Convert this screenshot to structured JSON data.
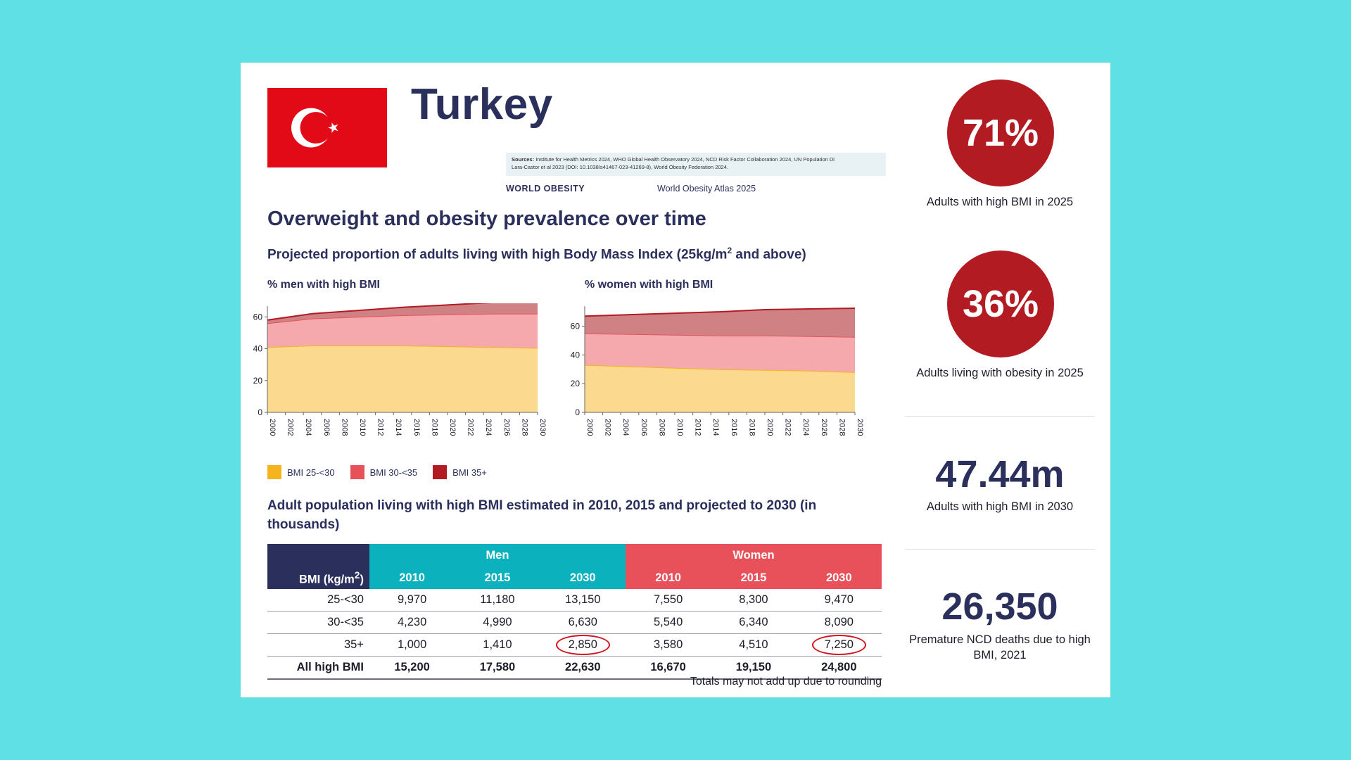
{
  "country": "Turkey",
  "sources": {
    "label": "Sources:",
    "line1": "Institute for Health Metrics 2024, WHO Global Health Observatory 2024, NCD Risk Factor Collaboration 2024, UN Population Di",
    "line2": "Lara-Castor et al 2023 (DOI: 10.1038/s41467-023-41269-8), World Obesity Federation 2024."
  },
  "brand": "WORLD OBESITY",
  "atlas": "World Obesity Atlas 2025",
  "section_title": "Overweight and obesity prevalence over time",
  "subtitle_prefix": "Projected proportion of adults living with high Body Mass Index (25kg/m",
  "subtitle_sup": "2",
  "subtitle_suffix": " and above)",
  "men_chart_label": "% men with high BMI",
  "women_chart_label": "% women with high BMI",
  "legend": [
    {
      "label": "BMI 25-<30",
      "color": "#f5b31d"
    },
    {
      "label": "BMI 30-<35",
      "color": "#e8515a"
    },
    {
      "label": "BMI 35+",
      "color": "#b31b22"
    }
  ],
  "table_title": "Adult population living with high BMI estimated in 2010, 2015 and projected to 2030 (in thousands)",
  "table": {
    "corner_prefix": "BMI (kg/m",
    "corner_sup": "2",
    "corner_suffix": ")",
    "men": "Men",
    "women": "Women",
    "years": [
      "2010",
      "2015",
      "2030",
      "2010",
      "2015",
      "2030"
    ],
    "rows": [
      {
        "label": "25-<30",
        "values": [
          "9,970",
          "11,180",
          "13,150",
          "7,550",
          "8,300",
          "9,470"
        ]
      },
      {
        "label": "30-<35",
        "values": [
          "4,230",
          "4,990",
          "6,630",
          "5,540",
          "6,340",
          "8,090"
        ]
      },
      {
        "label": "35+",
        "values": [
          "1,000",
          "1,410",
          "2,850",
          "3,580",
          "4,510",
          "7,250"
        ]
      },
      {
        "label": "All high BMI",
        "values": [
          "15,200",
          "17,580",
          "22,630",
          "16,670",
          "19,150",
          "24,800"
        ]
      }
    ],
    "note": "Totals may not add up due to rounding"
  },
  "stats": {
    "adults_high_bmi_2025": {
      "value": "71%",
      "caption": "Adults with high BMI in 2025"
    },
    "adults_obesity_2025": {
      "value": "36%",
      "caption": "Adults living with obesity in 2025"
    },
    "adults_high_bmi_2030": {
      "value": "47.44m",
      "caption": "Adults with high BMI in 2030"
    },
    "ncd_deaths": {
      "value": "26,350",
      "caption": "Premature NCD deaths due to high BMI, 2021"
    }
  },
  "chart_data": [
    {
      "type": "area",
      "title": "% men with high BMI",
      "x": [
        2000,
        2005,
        2010,
        2015,
        2020,
        2025,
        2030
      ],
      "x_ticks": [
        "2000",
        "2002",
        "2004",
        "2006",
        "2008",
        "2010",
        "2012",
        "2014",
        "2016",
        "2018",
        "2020",
        "2022",
        "2024",
        "2026",
        "2028",
        "2030"
      ],
      "y_ticks": [
        "0",
        "20",
        "40",
        "60"
      ],
      "ylim": [
        0,
        65
      ],
      "stacked": true,
      "series": [
        {
          "name": "BMI 25-<30",
          "values": [
            41,
            42,
            42,
            42,
            41.5,
            41,
            40.5
          ]
        },
        {
          "name": "BMI 30-<35",
          "values": [
            15,
            17,
            18,
            19,
            20,
            21,
            21.5
          ]
        },
        {
          "name": "BMI 35+",
          "values": [
            2,
            3,
            4,
            5,
            6,
            7,
            8
          ]
        }
      ]
    },
    {
      "type": "area",
      "title": "% women with high BMI",
      "x": [
        2000,
        2005,
        2010,
        2015,
        2020,
        2025,
        2030
      ],
      "x_ticks": [
        "2000",
        "2002",
        "2004",
        "2006",
        "2008",
        "2010",
        "2012",
        "2014",
        "2016",
        "2018",
        "2020",
        "2022",
        "2024",
        "2026",
        "2028",
        "2030"
      ],
      "y_ticks": [
        "0",
        "20",
        "40",
        "60"
      ],
      "ylim": [
        0,
        72
      ],
      "stacked": true,
      "series": [
        {
          "name": "BMI 25-<30",
          "values": [
            33,
            32,
            31,
            30,
            29.5,
            29,
            28
          ]
        },
        {
          "name": "BMI 30-<35",
          "values": [
            22,
            22.5,
            23,
            23.5,
            24,
            24,
            24.5
          ]
        },
        {
          "name": "BMI 35+",
          "values": [
            12,
            13.5,
            15,
            16.5,
            18,
            19,
            20
          ]
        }
      ]
    }
  ]
}
